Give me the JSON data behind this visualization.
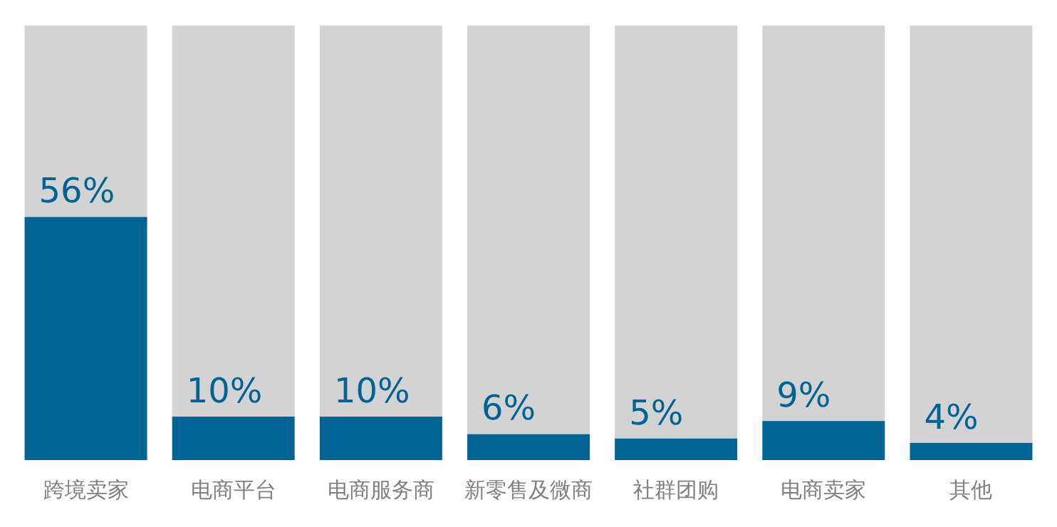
{
  "chart_data": {
    "type": "bar",
    "stacked": true,
    "categories": [
      "跨境卖家",
      "电商平台",
      "电商服务商",
      "新零售及微商",
      "社群团购",
      "电商卖家",
      "其他"
    ],
    "series": [
      {
        "color": "#006394",
        "values": [
          56,
          10,
          10,
          6,
          5,
          9,
          4
        ],
        "value_labels": [
          "56%",
          "10%",
          "10%",
          "6%",
          "5%",
          "9%",
          "4%"
        ]
      },
      {
        "color": "#d3d3d3",
        "values": [
          44,
          90,
          90,
          94,
          95,
          91,
          96
        ]
      }
    ],
    "ylim": [
      0,
      100
    ],
    "tick_labels": "x"
  }
}
